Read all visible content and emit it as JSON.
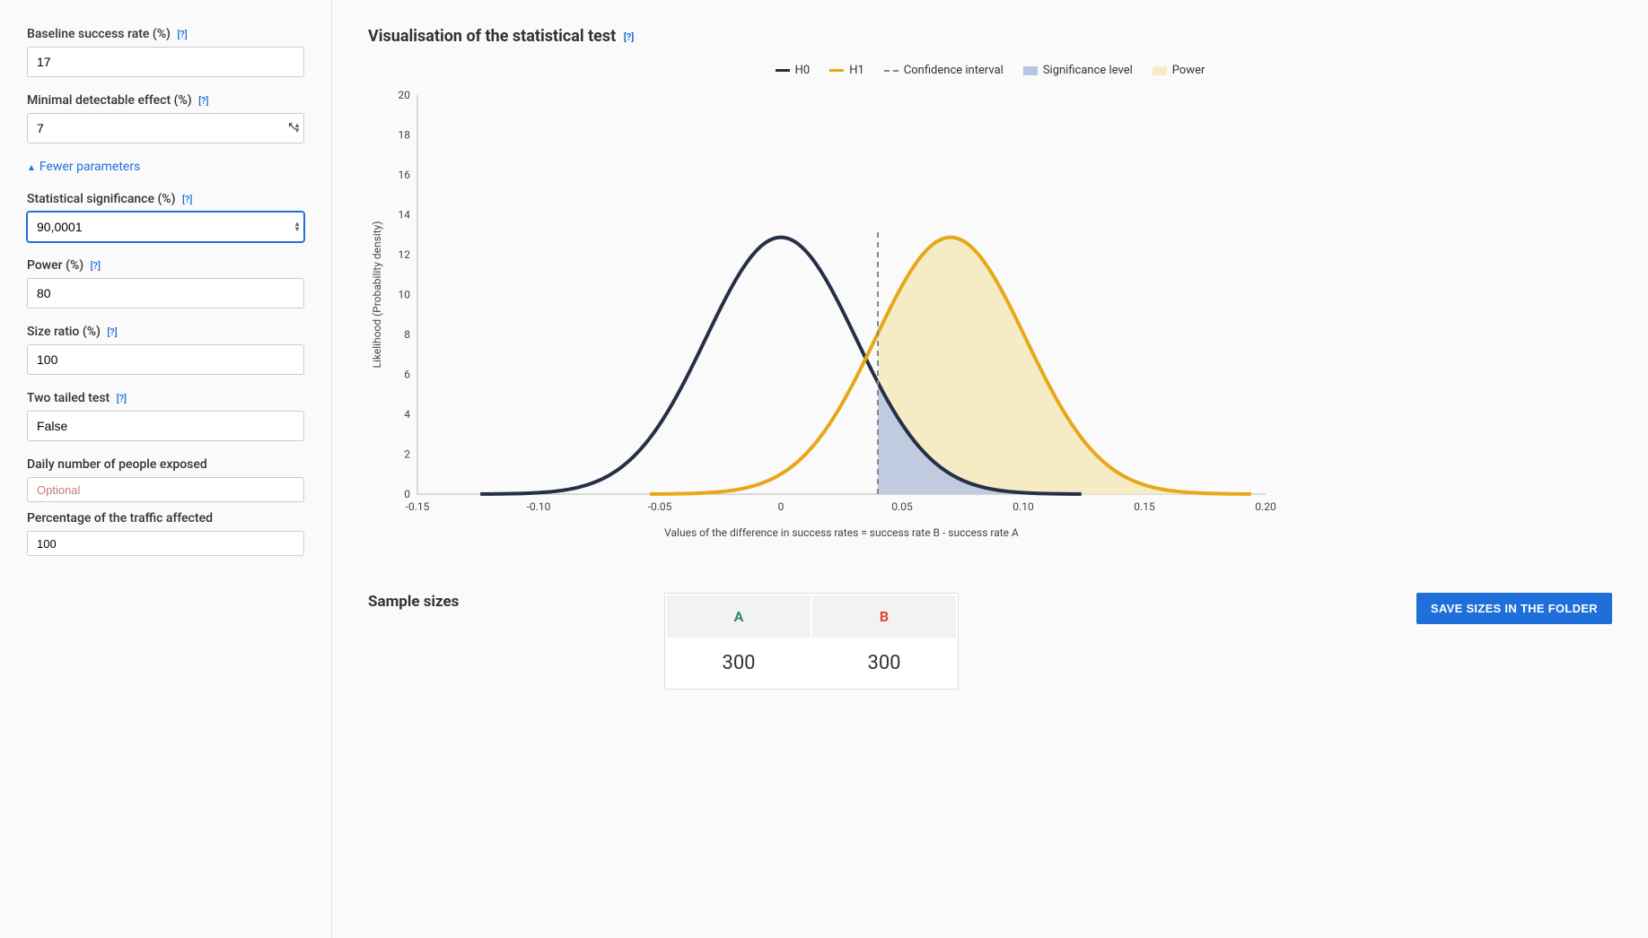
{
  "sidebar": {
    "baseline": {
      "label": "Baseline success rate (%)",
      "value": "17"
    },
    "mde": {
      "label": "Minimal detectable effect (%)",
      "value": "7"
    },
    "fewer_label": "Fewer parameters",
    "significance": {
      "label": "Statistical significance (%)",
      "value": "90,0001"
    },
    "power": {
      "label": "Power (%)",
      "value": "80"
    },
    "ratio": {
      "label": "Size ratio (%)",
      "value": "100"
    },
    "tailed": {
      "label": "Two tailed test",
      "value": "False"
    },
    "daily": {
      "label": "Daily number of people exposed",
      "placeholder": "Optional"
    },
    "traffic": {
      "label": "Percentage of the traffic affected",
      "value": "100"
    },
    "help_glyph": "[?]"
  },
  "vis": {
    "title": "Visualisation of the statistical test",
    "legend": {
      "h0": "H0",
      "h1": "H1",
      "ci": "Confidence interval",
      "sig": "Significance level",
      "power": "Power"
    },
    "colors": {
      "h0": "#262f45",
      "h1": "#e6a817",
      "ci_dash": "#888888",
      "sig_fill": "#b6c6e4",
      "power_fill": "#f5ecc6",
      "grid": "#e8e8e8",
      "axis_text": "#444444",
      "bg": "#fafafa"
    },
    "xlabel": "Values of the difference in success rates = success rate B - success rate A",
    "ylabel": "Likelihood (Probability density)",
    "xlim": [
      -0.15,
      0.2
    ],
    "xticks": [
      -0.15,
      -0.1,
      -0.05,
      0,
      0.05,
      0.1,
      0.15,
      0.2
    ],
    "ylim": [
      0,
      20
    ],
    "ytick_step": 2,
    "h0_mean": 0.0,
    "h1_mean": 0.07,
    "sigma": 0.031,
    "ci_x": 0.04,
    "line_width_h0": 4,
    "line_width_h1": 4
  },
  "samples": {
    "title": "Sample sizes",
    "col_a": "A",
    "col_b": "B",
    "val_a": "300",
    "val_b": "300",
    "col_a_color": "#2a8a6e",
    "col_b_color": "#d94a3a",
    "save_label": "SAVE SIZES IN THE FOLDER"
  }
}
